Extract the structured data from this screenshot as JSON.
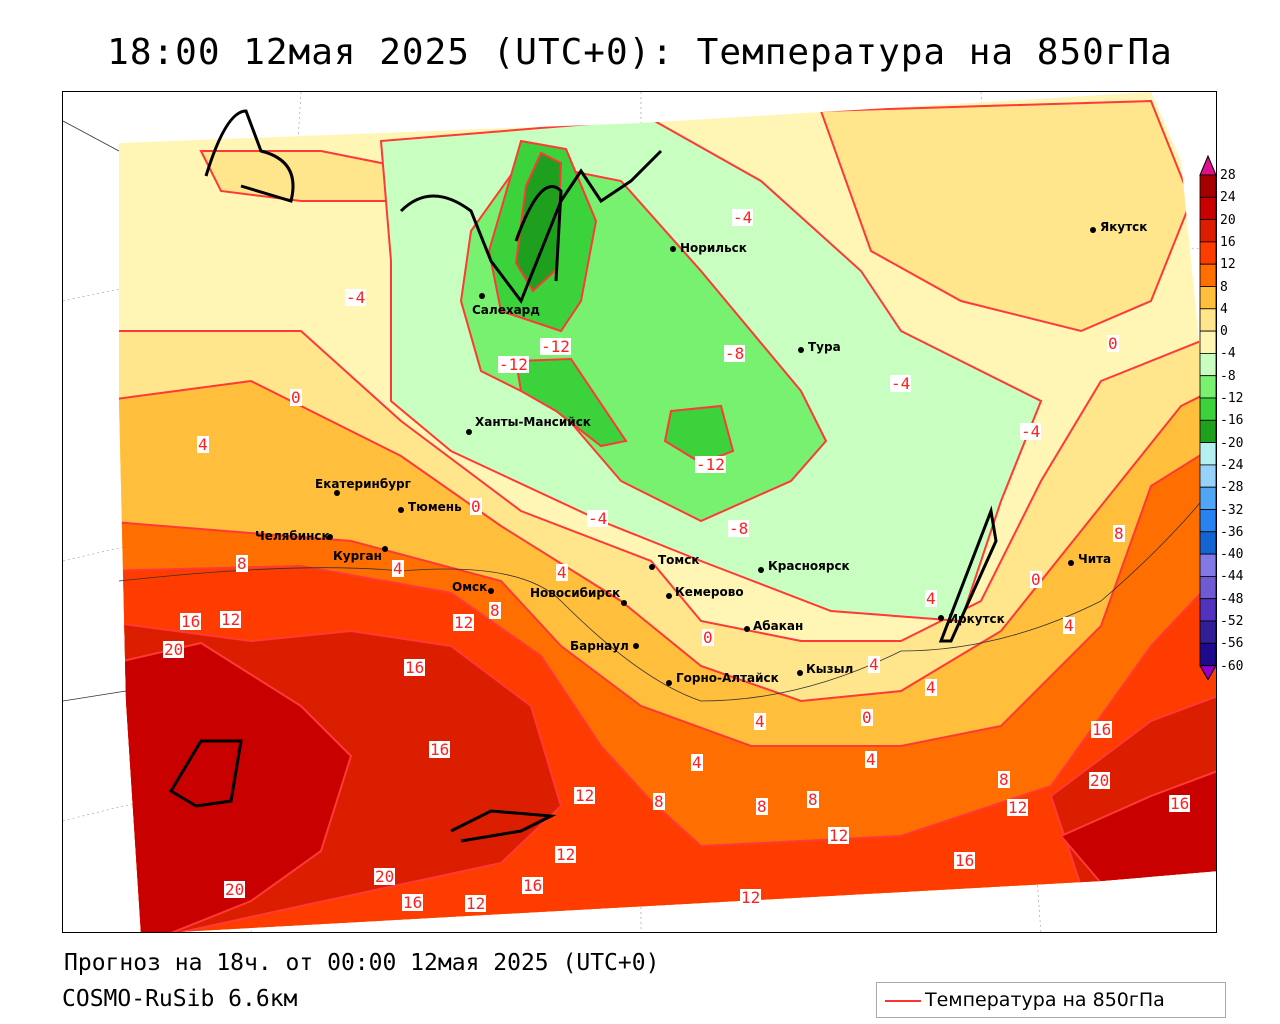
{
  "title": "18:00 12мая 2025 (UTC+0): Температура на 850гПа",
  "footer": {
    "forecast": "Прогноз на 18ч. от 00:00 12мая 2025 (UTC+0)",
    "model": "COSMO-RuSib 6.6км"
  },
  "legend": {
    "label": "Температура на 850гПа",
    "line_color": "#ff3030"
  },
  "colorbar": {
    "labels": [
      "28",
      "24",
      "20",
      "16",
      "12",
      "8",
      "4",
      "0",
      "-4",
      "-8",
      "-12",
      "-16",
      "-20",
      "-24",
      "-28",
      "-32",
      "-36",
      "-40",
      "-44",
      "-48",
      "-52",
      "-56",
      "-60"
    ],
    "colors": [
      "#a50000",
      "#c80000",
      "#dc1e00",
      "#ff3c00",
      "#ff6e00",
      "#ffbe3c",
      "#ffe68c",
      "#fff5b4",
      "#c8ffc0",
      "#78f070",
      "#3cd23c",
      "#1ea01e",
      "#b4f0f0",
      "#96d2fa",
      "#50a5f5",
      "#2882f0",
      "#1464d2",
      "#8278e6",
      "#6e5ad2",
      "#5032be",
      "#321e96",
      "#1e0a8c"
    ],
    "top_color": "#e0108a",
    "bottom_color": "#9600c8"
  },
  "cities": [
    "Якутск",
    "Норильск",
    "Салехард",
    "Тура",
    "Ханты-Мансийск",
    "Екатеринбург",
    "Тюмень",
    "Челябинск",
    "Курган",
    "Омск",
    "Новосибирск",
    "Томск",
    "Кемерово",
    "Красноярск",
    "Абакан",
    "Барнаул",
    "Горно-Алтайск",
    "Кызыл",
    "Иркутск",
    "Чита"
  ],
  "contour_labels": [
    "-4",
    "-4",
    "-12",
    "-12",
    "-8",
    "-4",
    "-4",
    "-12",
    "-4",
    "-8",
    "0",
    "0",
    "4",
    "0",
    "8",
    "4",
    "4",
    "8",
    "12",
    "16",
    "12",
    "20",
    "0",
    "8",
    "0",
    "4",
    "4",
    "4",
    "4",
    "16",
    "16",
    "4",
    "0",
    "4",
    "4",
    "12",
    "8",
    "8",
    "8",
    "12",
    "8",
    "12",
    "16",
    "20",
    "16",
    "16",
    "12",
    "16",
    "20",
    "16",
    "12",
    "20",
    "12"
  ]
}
